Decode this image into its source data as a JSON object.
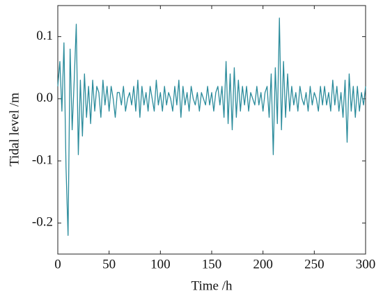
{
  "chart_data": {
    "type": "line",
    "x_label": "Time /h",
    "y_label": "Tidal level /m",
    "xlim": [
      0,
      300
    ],
    "xticks": [
      0,
      50,
      100,
      150,
      200,
      250,
      300
    ],
    "ylim": [
      -0.25,
      0.15
    ],
    "yticks": [
      -0.2,
      -0.1,
      {
        "value": 0,
        "label": "0.0"
      },
      0.1
    ],
    "x": [
      0,
      2,
      4,
      6,
      8,
      10,
      12,
      14,
      16,
      18,
      20,
      22,
      24,
      26,
      28,
      30,
      32,
      34,
      36,
      38,
      40,
      42,
      44,
      46,
      48,
      50,
      52,
      54,
      56,
      58,
      60,
      62,
      64,
      66,
      68,
      70,
      72,
      74,
      76,
      78,
      80,
      82,
      84,
      86,
      88,
      90,
      92,
      94,
      96,
      98,
      100,
      102,
      104,
      106,
      108,
      110,
      112,
      114,
      116,
      118,
      120,
      122,
      124,
      126,
      128,
      130,
      132,
      134,
      136,
      138,
      140,
      142,
      144,
      146,
      148,
      150,
      152,
      154,
      156,
      158,
      160,
      162,
      164,
      166,
      168,
      170,
      172,
      174,
      176,
      178,
      180,
      182,
      184,
      186,
      188,
      190,
      192,
      194,
      196,
      198,
      200,
      202,
      204,
      206,
      208,
      210,
      212,
      214,
      216,
      218,
      220,
      222,
      224,
      226,
      228,
      230,
      232,
      234,
      236,
      238,
      240,
      242,
      244,
      246,
      248,
      250,
      252,
      254,
      256,
      258,
      260,
      262,
      264,
      266,
      268,
      270,
      272,
      274,
      276,
      278,
      280,
      282,
      284,
      286,
      288,
      290,
      292,
      294,
      296,
      298,
      300
    ],
    "series": [
      {
        "name": "Tidal level",
        "color": "#2a8b9b",
        "values": [
          0.02,
          0.06,
          -0.02,
          0.09,
          -0.11,
          -0.22,
          0.08,
          -0.05,
          0.03,
          0.12,
          -0.09,
          0.03,
          -0.06,
          0.04,
          -0.03,
          0.02,
          -0.04,
          0.03,
          -0.02,
          0.02,
          0.01,
          -0.03,
          0.03,
          -0.01,
          0.02,
          -0.02,
          0.02,
          0.0,
          -0.03,
          0.01,
          0.01,
          -0.01,
          0.02,
          -0.02,
          0.0,
          0.01,
          -0.01,
          0.02,
          -0.02,
          0.03,
          -0.03,
          0.02,
          -0.01,
          0.01,
          -0.02,
          0.02,
          0.0,
          -0.02,
          0.03,
          -0.01,
          0.01,
          -0.02,
          0.02,
          -0.01,
          0.01,
          0.0,
          -0.02,
          0.02,
          -0.01,
          0.03,
          -0.03,
          0.02,
          -0.01,
          0.01,
          -0.02,
          0.02,
          0.0,
          -0.01,
          0.01,
          -0.02,
          0.01,
          0.0,
          -0.01,
          0.02,
          -0.01,
          0.01,
          -0.02,
          0.01,
          0.02,
          -0.01,
          0.02,
          -0.03,
          0.06,
          -0.04,
          0.04,
          -0.05,
          0.05,
          -0.03,
          0.03,
          -0.02,
          0.02,
          -0.01,
          0.02,
          -0.02,
          0.01,
          0.0,
          -0.01,
          0.02,
          -0.01,
          0.01,
          -0.02,
          0.01,
          0.02,
          -0.03,
          0.04,
          -0.09,
          0.05,
          -0.04,
          0.13,
          -0.05,
          0.06,
          -0.03,
          0.04,
          -0.02,
          0.02,
          -0.01,
          0.01,
          -0.02,
          0.02,
          0.0,
          -0.01,
          0.01,
          -0.02,
          0.02,
          -0.01,
          0.01,
          0.0,
          -0.02,
          0.02,
          -0.01,
          0.02,
          -0.01,
          0.01,
          -0.02,
          0.03,
          -0.01,
          0.02,
          -0.02,
          0.01,
          -0.03,
          0.03,
          -0.07,
          0.04,
          -0.02,
          0.02,
          -0.03,
          0.02,
          -0.02,
          0.01,
          -0.01,
          0.02
        ]
      }
    ]
  }
}
